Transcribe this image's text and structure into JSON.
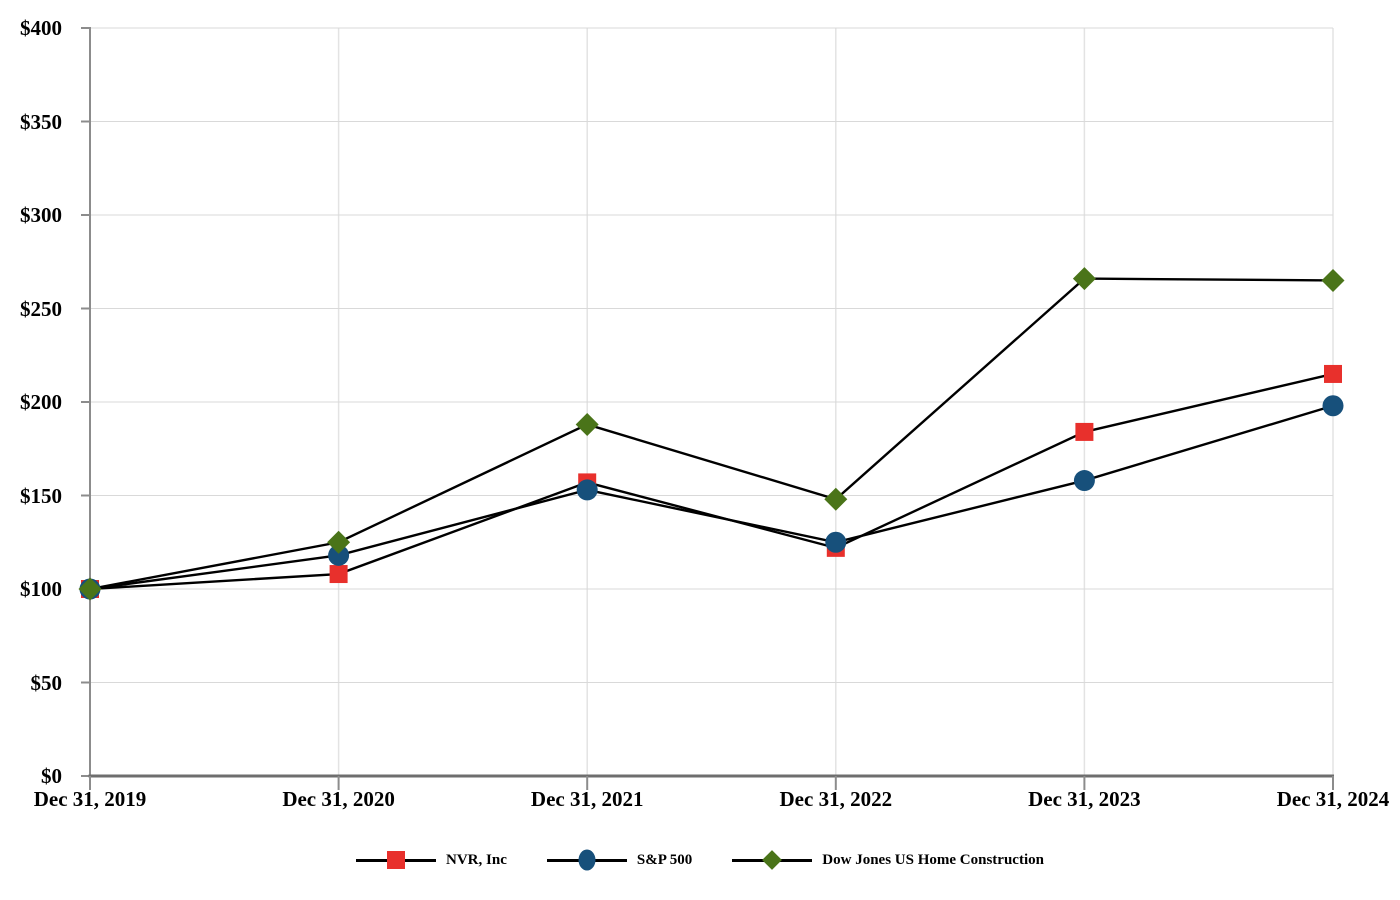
{
  "chart_data": {
    "type": "line",
    "title": "",
    "xlabel": "",
    "ylabel": "",
    "categories": [
      "Dec 31, 2019",
      "Dec 31, 2020",
      "Dec 31, 2021",
      "Dec 31, 2022",
      "Dec 31, 2023",
      "Dec 31, 2024"
    ],
    "series": [
      {
        "name": "NVR, Inc",
        "marker": "square",
        "color": "#e8302c",
        "values": [
          100,
          108,
          157,
          122,
          184,
          215
        ]
      },
      {
        "name": "S&P 500",
        "marker": "circle",
        "color": "#17507b",
        "values": [
          100,
          118,
          153,
          125,
          158,
          198
        ]
      },
      {
        "name": "Dow Jones US Home Construction",
        "marker": "diamond",
        "color": "#4a7419",
        "values": [
          100,
          125,
          188,
          148,
          266,
          265
        ]
      }
    ],
    "ylim": [
      0,
      400
    ],
    "y_tick_step": 50,
    "y_tick_labels": [
      "$0",
      "$50",
      "$100",
      "$150",
      "$200",
      "$250",
      "$300",
      "$350",
      "$400"
    ],
    "grid": true,
    "legend_position": "bottom",
    "line_color": "#000000",
    "h_gridline_color": "#d9d9d9",
    "v_gridline_color": "#e3e3e3",
    "axis_color": "#8c8c8c",
    "baseline_color": "#6e6e6e"
  }
}
